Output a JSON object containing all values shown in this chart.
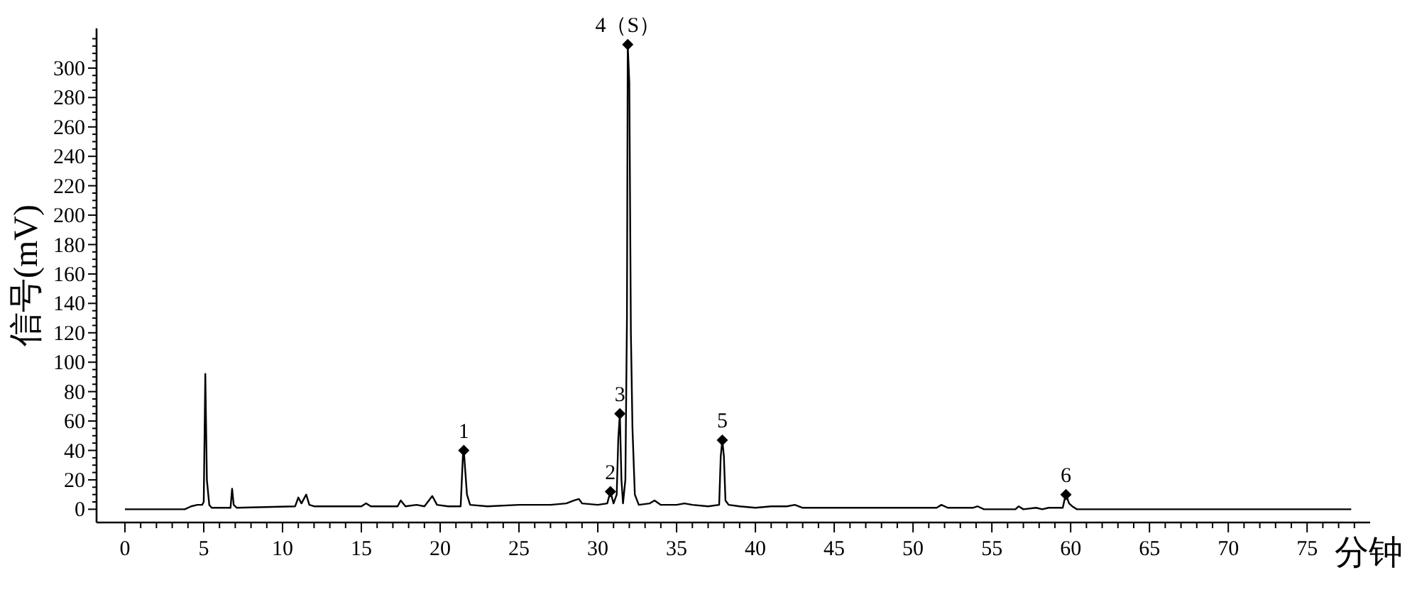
{
  "chart_data": {
    "type": "line",
    "xlabel": "分钟",
    "ylabel": "信号(mV)",
    "xlim": [
      -1.8,
      79
    ],
    "ylim": [
      -9,
      327
    ],
    "xticks": [
      0,
      {
        "value": 1,
        "label": null
      },
      {
        "value": 2,
        "label": null
      },
      {
        "value": 3,
        "label": null
      },
      {
        "value": 4,
        "label": null
      },
      5,
      {
        "value": 6,
        "label": null
      },
      {
        "value": 7,
        "label": null
      },
      {
        "value": 8,
        "label": null
      },
      {
        "value": 9,
        "label": null
      },
      10,
      {
        "value": 11,
        "label": null
      },
      {
        "value": 12,
        "label": null
      },
      {
        "value": 13,
        "label": null
      },
      {
        "value": 14,
        "label": null
      },
      15,
      {
        "value": 16,
        "label": null
      },
      {
        "value": 17,
        "label": null
      },
      {
        "value": 18,
        "label": null
      },
      {
        "value": 19,
        "label": null
      },
      20,
      {
        "value": 21,
        "label": null
      },
      {
        "value": 22,
        "label": null
      },
      {
        "value": 23,
        "label": null
      },
      {
        "value": 24,
        "label": null
      },
      25,
      {
        "value": 26,
        "label": null
      },
      {
        "value": 27,
        "label": null
      },
      {
        "value": 28,
        "label": null
      },
      {
        "value": 29,
        "label": null
      },
      30,
      {
        "value": 31,
        "label": null
      },
      {
        "value": 32,
        "label": null
      },
      {
        "value": 33,
        "label": null
      },
      {
        "value": 34,
        "label": null
      },
      35,
      {
        "value": 36,
        "label": null
      },
      {
        "value": 37,
        "label": null
      },
      {
        "value": 38,
        "label": null
      },
      {
        "value": 39,
        "label": null
      },
      40,
      {
        "value": 41,
        "label": null
      },
      {
        "value": 42,
        "label": null
      },
      {
        "value": 43,
        "label": null
      },
      {
        "value": 44,
        "label": null
      },
      45,
      {
        "value": 46,
        "label": null
      },
      {
        "value": 47,
        "label": null
      },
      {
        "value": 48,
        "label": null
      },
      {
        "value": 49,
        "label": null
      },
      50,
      {
        "value": 51,
        "label": null
      },
      {
        "value": 52,
        "label": null
      },
      {
        "value": 53,
        "label": null
      },
      {
        "value": 54,
        "label": null
      },
      55,
      {
        "value": 56,
        "label": null
      },
      {
        "value": 57,
        "label": null
      },
      {
        "value": 58,
        "label": null
      },
      {
        "value": 59,
        "label": null
      },
      60,
      {
        "value": 61,
        "label": null
      },
      {
        "value": 62,
        "label": null
      },
      {
        "value": 63,
        "label": null
      },
      {
        "value": 64,
        "label": null
      },
      65,
      {
        "value": 66,
        "label": null
      },
      {
        "value": 67,
        "label": null
      },
      {
        "value": 68,
        "label": null
      },
      {
        "value": 69,
        "label": null
      },
      70,
      {
        "value": 71,
        "label": null
      },
      {
        "value": 72,
        "label": null
      },
      {
        "value": 73,
        "label": null
      },
      {
        "value": 74,
        "label": null
      },
      75,
      {
        "value": 76,
        "label": null
      },
      {
        "value": 77,
        "label": null
      },
      {
        "value": 78,
        "label": null
      }
    ],
    "yticks": [
      0,
      {
        "value": 5,
        "label": null
      },
      {
        "value": 10,
        "label": null
      },
      {
        "value": 15,
        "label": null
      },
      20,
      {
        "value": 25,
        "label": null
      },
      {
        "value": 30,
        "label": null
      },
      {
        "value": 35,
        "label": null
      },
      40,
      {
        "value": 45,
        "label": null
      },
      {
        "value": 50,
        "label": null
      },
      {
        "value": 55,
        "label": null
      },
      60,
      {
        "value": 65,
        "label": null
      },
      {
        "value": 70,
        "label": null
      },
      {
        "value": 75,
        "label": null
      },
      80,
      {
        "value": 85,
        "label": null
      },
      {
        "value": 90,
        "label": null
      },
      {
        "value": 95,
        "label": null
      },
      100,
      {
        "value": 105,
        "label": null
      },
      {
        "value": 110,
        "label": null
      },
      {
        "value": 115,
        "label": null
      },
      120,
      {
        "value": 125,
        "label": null
      },
      {
        "value": 130,
        "label": null
      },
      {
        "value": 135,
        "label": null
      },
      140,
      {
        "value": 145,
        "label": null
      },
      {
        "value": 150,
        "label": null
      },
      {
        "value": 155,
        "label": null
      },
      160,
      {
        "value": 165,
        "label": null
      },
      {
        "value": 170,
        "label": null
      },
      {
        "value": 175,
        "label": null
      },
      180,
      {
        "value": 185,
        "label": null
      },
      {
        "value": 190,
        "label": null
      },
      {
        "value": 195,
        "label": null
      },
      200,
      {
        "value": 205,
        "label": null
      },
      {
        "value": 210,
        "label": null
      },
      {
        "value": 215,
        "label": null
      },
      220,
      {
        "value": 225,
        "label": null
      },
      {
        "value": 230,
        "label": null
      },
      {
        "value": 235,
        "label": null
      },
      240,
      {
        "value": 245,
        "label": null
      },
      {
        "value": 250,
        "label": null
      },
      {
        "value": 255,
        "label": null
      },
      260,
      {
        "value": 265,
        "label": null
      },
      {
        "value": 270,
        "label": null
      },
      {
        "value": 275,
        "label": null
      },
      280,
      {
        "value": 285,
        "label": null
      },
      {
        "value": 290,
        "label": null
      },
      {
        "value": 295,
        "label": null
      },
      300,
      {
        "value": 305,
        "label": null
      },
      {
        "value": 310,
        "label": null
      },
      {
        "value": 315,
        "label": null
      },
      {
        "value": 320,
        "label": null
      }
    ],
    "grid": false,
    "annotations": [
      {
        "text": "1",
        "x": 21.5,
        "y": 40
      },
      {
        "text": "2",
        "x": 30.8,
        "y": 12
      },
      {
        "text": "3",
        "x": 31.4,
        "y": 65
      },
      {
        "text": "4（S）",
        "x": 31.9,
        "y": 316
      },
      {
        "text": "5",
        "x": 37.9,
        "y": 47
      },
      {
        "text": "6",
        "x": 59.7,
        "y": 10
      }
    ],
    "series": [
      {
        "color": "#000000",
        "line_style": "solid",
        "marker": "none",
        "x": [
          0,
          3.8,
          4.2,
          4.6,
          4.9,
          5.0,
          5.1,
          5.2,
          5.35,
          5.5,
          6.7,
          6.8,
          6.9,
          7.1,
          10.8,
          11.0,
          11.2,
          11.5,
          11.7,
          12,
          15,
          15.3,
          15.6,
          17.3,
          17.5,
          17.8,
          18.5,
          19.0,
          19.5,
          19.8,
          20.5,
          21.3,
          21.45,
          21.5,
          21.7,
          21.9,
          23,
          25,
          27,
          28,
          28.5,
          28.8,
          29,
          30,
          30.6,
          30.8,
          31.0,
          31.2,
          31.3,
          31.4,
          31.5,
          31.6,
          31.75,
          31.85,
          31.9,
          32.0,
          32.1,
          32.2,
          32.35,
          32.6,
          33.3,
          33.6,
          34,
          35,
          35.5,
          36,
          37,
          37.7,
          37.8,
          37.9,
          38.0,
          38.1,
          38.3,
          39,
          40,
          41,
          42,
          42.5,
          43,
          50,
          51.5,
          51.8,
          52.2,
          53.8,
          54.1,
          54.5,
          56.5,
          56.7,
          57,
          57.8,
          58.2,
          58.6,
          59.5,
          59.6,
          59.7,
          59.9,
          60.1,
          60.4,
          77.8
        ],
        "values": [
          0,
          0,
          2,
          3,
          3,
          5,
          92,
          20,
          3,
          1,
          1,
          14,
          3,
          1,
          2,
          8,
          4,
          10,
          3,
          2,
          2,
          4,
          2,
          2,
          6,
          2,
          3,
          2,
          9,
          3,
          2,
          2,
          38,
          40,
          10,
          3,
          2,
          3,
          3,
          4,
          6,
          7,
          4,
          3,
          4,
          12,
          4,
          10,
          48,
          65,
          20,
          4,
          20,
          130,
          316,
          290,
          120,
          55,
          10,
          3,
          4,
          6,
          3,
          3,
          4,
          3,
          2,
          3,
          36,
          47,
          36,
          6,
          3,
          2,
          1,
          2,
          2,
          3,
          1,
          1,
          1,
          3,
          1,
          1,
          2,
          0,
          0,
          2,
          0,
          1,
          0,
          1,
          1,
          6,
          10,
          4,
          2,
          0,
          0
        ]
      },
      {
        "type": "scatter",
        "color": "#000000",
        "marker": "diamond",
        "x": [
          21.5,
          30.8,
          31.4,
          31.9,
          37.9,
          59.7
        ],
        "values": [
          40,
          12,
          65,
          316,
          47,
          10
        ]
      }
    ]
  }
}
